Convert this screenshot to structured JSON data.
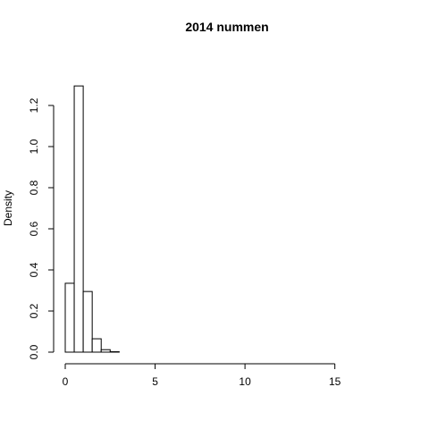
{
  "chart_data": {
    "type": "bar",
    "title": "2014 nummen",
    "xlabel": "",
    "ylabel": "Density",
    "bin_width": 1,
    "bins": [
      {
        "x0": 0,
        "x1": 1,
        "value": 0.335
      },
      {
        "x0": 1,
        "x1": 2,
        "value": 1.295
      },
      {
        "x0": 2,
        "x1": 3,
        "value": 0.295
      },
      {
        "x0": 3,
        "x1": 4,
        "value": 0.065
      },
      {
        "x0": 4,
        "x1": 5,
        "value": 0.012
      },
      {
        "x0": 5,
        "x1": 6,
        "value": 0.002
      },
      {
        "x0": 6,
        "x1": 7,
        "value": 0.0
      },
      {
        "x0": 7,
        "x1": 8,
        "value": 0.0
      },
      {
        "x0": 8,
        "x1": 9,
        "value": 0.0
      },
      {
        "x0": 9,
        "x1": 10,
        "value": 0.0
      },
      {
        "x0": 10,
        "x1": 11,
        "value": 0.0
      },
      {
        "x0": 11,
        "x1": 12,
        "value": 0.0
      },
      {
        "x0": 12,
        "x1": 13,
        "value": 0.0
      },
      {
        "x0": 13,
        "x1": 14,
        "value": 0.0
      },
      {
        "x0": 14,
        "x1": 15,
        "value": 0.0
      },
      {
        "x0": 15,
        "x1": 16,
        "value": 0.0
      },
      {
        "x0": 16,
        "x1": 17,
        "value": 0.0
      },
      {
        "x0": 17,
        "x1": 18,
        "value": 0.0
      },
      {
        "x0": 18,
        "x1": 19,
        "value": 0.0
      },
      {
        "x0": 19,
        "x1": 20,
        "value": 0.0
      },
      {
        "x0": 20,
        "x1": 21,
        "value": 0.0
      },
      {
        "x0": 21,
        "x1": 22,
        "value": 0.0
      },
      {
        "x0": 22,
        "x1": 23,
        "value": 0.0
      },
      {
        "x0": 23,
        "x1": 24,
        "value": 0.0
      },
      {
        "x0": 24,
        "x1": 25,
        "value": 0.0
      },
      {
        "x0": 25,
        "x1": 26,
        "value": 0.0
      },
      {
        "x0": 26,
        "x1": 27,
        "value": 0.0
      },
      {
        "x0": 27,
        "x1": 28,
        "value": 0.0
      },
      {
        "x0": 28,
        "x1": 29,
        "value": 0.0
      },
      {
        "x0": 29,
        "x1": 30,
        "value": 0.0
      },
      {
        "x0": 30,
        "x1": 31,
        "value": 0.0
      },
      {
        "x0": 31,
        "x1": 32,
        "value": 0.0
      },
      {
        "x0": 32,
        "x1": 33,
        "value": 0.0
      },
      {
        "x0": 33,
        "x1": 34,
        "value": 0.0
      },
      {
        "x0": 34,
        "x1": 35,
        "value": 0.0
      },
      {
        "x0": 35,
        "x1": 36,
        "value": 0.0
      }
    ],
    "xlim": [
      0,
      18
    ],
    "ylim": [
      0,
      1.3
    ],
    "x_ticks": [
      0,
      5,
      10,
      15
    ],
    "x_tick_labels": [
      "0",
      "5",
      "10",
      "15"
    ],
    "y_ticks": [
      0.0,
      0.2,
      0.4,
      0.6,
      0.8,
      1.0,
      1.2
    ],
    "y_tick_labels": [
      "0.0",
      "0.2",
      "0.4",
      "0.6",
      "0.8",
      "1.0",
      "1.2"
    ],
    "grid": false,
    "bar_fill": "#ffffff",
    "bar_stroke": "#000000"
  }
}
